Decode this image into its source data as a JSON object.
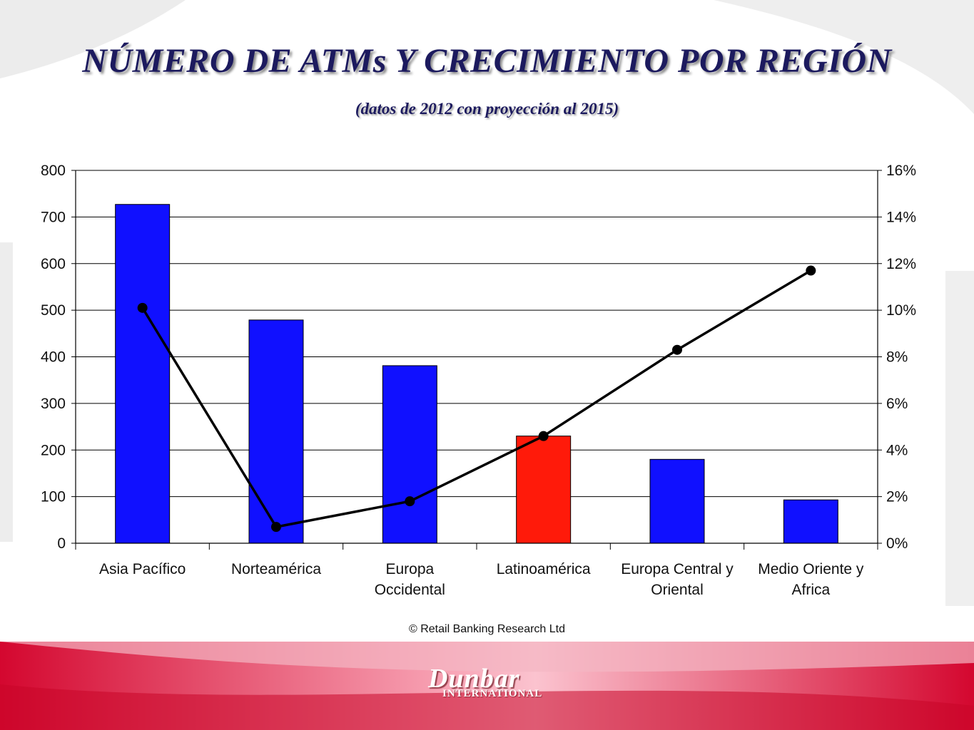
{
  "slide": {
    "title": "NÚMERO DE ATMs Y CRECIMIENTO POR REGIÓN",
    "subtitle": "(datos de 2012 con proyección al 2015)",
    "copyright": "© Retail Banking Research Ltd",
    "logo_main": "Dunbar",
    "logo_sub": "INTERNATIONAL",
    "colors": {
      "title": "#1c1a5e",
      "bar": "#1010ff",
      "highlight_bar": "#ff1a0a",
      "line": "#000000",
      "band": "#d4072f"
    }
  },
  "chart_data": {
    "type": "bar",
    "title": "",
    "categories": [
      [
        "Asia Pacífico"
      ],
      [
        "Norteamérica"
      ],
      [
        "Europa",
        "Occidental"
      ],
      [
        "Latinoamérica"
      ],
      [
        "Europa Central y",
        "Oriental"
      ],
      [
        "Medio Oriente y",
        "Africa"
      ]
    ],
    "series": [
      {
        "type": "bar",
        "values": [
          727,
          479,
          381,
          230,
          180,
          93
        ],
        "colors": [
          "#1010ff",
          "#1010ff",
          "#1010ff",
          "#ff1a0a",
          "#1010ff",
          "#1010ff"
        ],
        "axis": "left"
      },
      {
        "type": "line",
        "values": [
          10.1,
          0.7,
          1.8,
          4.6,
          8.3,
          11.7
        ],
        "color": "#000000",
        "axis": "right"
      }
    ],
    "y_left": {
      "min": 0,
      "max": 800,
      "ticks": [
        "0",
        "100",
        "200",
        "300",
        "400",
        "500",
        "600",
        "700",
        "800"
      ]
    },
    "y_right": {
      "min": 0,
      "max": 16,
      "ticks": [
        "0%",
        "2%",
        "4%",
        "6%",
        "8%",
        "10%",
        "12%",
        "14%",
        "16%"
      ]
    },
    "grid": true,
    "legend": "none"
  }
}
